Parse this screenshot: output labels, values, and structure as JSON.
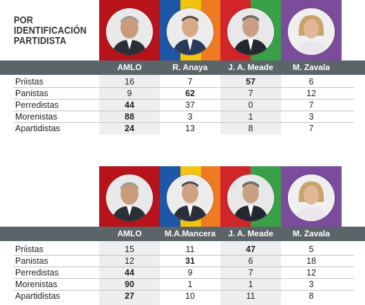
{
  "title_lines": [
    "POR",
    "IDENTIFICACIÓN",
    "PARTIDISTA"
  ],
  "colors": {
    "header_bar": "#5b6468",
    "amlo": "#b8121b",
    "anaya_blue": "#1f57a8",
    "anaya_yellow": "#f2c30f",
    "anaya_orange": "#ee7b22",
    "mancera_blue": "#1f57a8",
    "mancera_yellow": "#f2c30f",
    "mancera_orange": "#ee7b22",
    "meade_red": "#d1252a",
    "meade_green": "#3aa048",
    "zavala": "#7c4c9c"
  },
  "tables": [
    {
      "candidates": [
        {
          "name": "AMLO",
          "portrait": "amlo-portrait"
        },
        {
          "name": "R. Anaya",
          "portrait": "anaya-portrait"
        },
        {
          "name": "J. A. Meade",
          "portrait": "meade-portrait"
        },
        {
          "name": "M. Zavala",
          "portrait": "zavala-portrait"
        }
      ],
      "rows": [
        {
          "label": "Priistas",
          "values": [
            "16",
            "7",
            "57",
            "6"
          ],
          "bold": [
            false,
            false,
            true,
            false
          ]
        },
        {
          "label": "Panistas",
          "values": [
            "9",
            "62",
            "7",
            "12"
          ],
          "bold": [
            false,
            true,
            false,
            false
          ]
        },
        {
          "label": "Perredistas",
          "values": [
            "44",
            "37",
            "0",
            "7"
          ],
          "bold": [
            true,
            false,
            false,
            false
          ]
        },
        {
          "label": "Morenistas",
          "values": [
            "88",
            "3",
            "1",
            "3"
          ],
          "bold": [
            true,
            false,
            false,
            false
          ]
        },
        {
          "label": "Apartidistas",
          "values": [
            "24",
            "13",
            "8",
            "7"
          ],
          "bold": [
            true,
            false,
            false,
            false
          ]
        }
      ]
    },
    {
      "candidates": [
        {
          "name": "AMLO",
          "portrait": "amlo-portrait"
        },
        {
          "name": "M.A.Mancera",
          "portrait": "mancera-portrait"
        },
        {
          "name": "J. A. Meade",
          "portrait": "meade-portrait"
        },
        {
          "name": "M. Zavala",
          "portrait": "zavala-portrait"
        }
      ],
      "rows": [
        {
          "label": "Priistas",
          "values": [
            "15",
            "11",
            "47",
            "5"
          ],
          "bold": [
            false,
            false,
            true,
            false
          ]
        },
        {
          "label": "Panistas",
          "values": [
            "12",
            "31",
            "6",
            "18"
          ],
          "bold": [
            false,
            true,
            false,
            false
          ]
        },
        {
          "label": "Perredistas",
          "values": [
            "44",
            "9",
            "7",
            "12"
          ],
          "bold": [
            true,
            false,
            false,
            false
          ]
        },
        {
          "label": "Morenistas",
          "values": [
            "90",
            "1",
            "1",
            "3"
          ],
          "bold": [
            true,
            false,
            false,
            false
          ]
        },
        {
          "label": "Apartidistas",
          "values": [
            "27",
            "10",
            "11",
            "8"
          ],
          "bold": [
            true,
            false,
            false,
            false
          ]
        }
      ]
    }
  ]
}
